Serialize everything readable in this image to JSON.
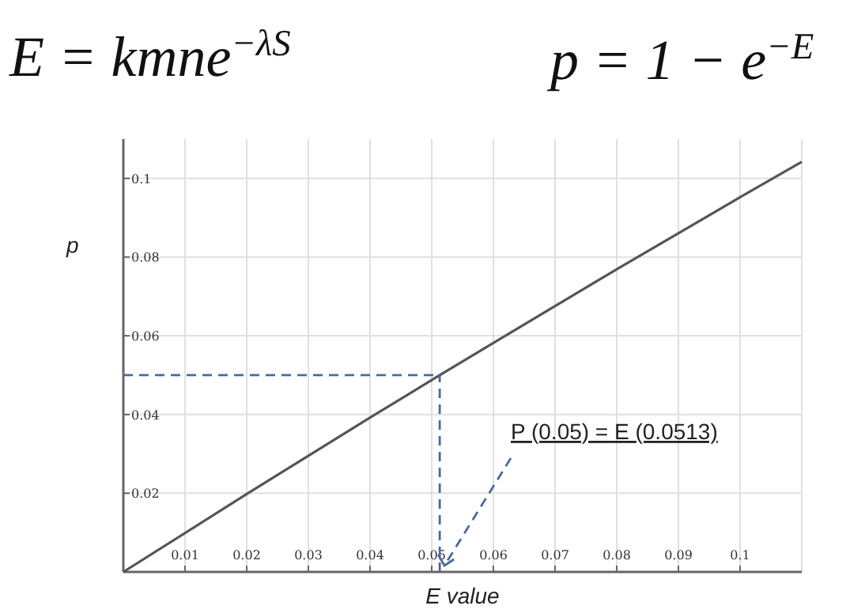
{
  "chart_data": {
    "type": "line",
    "title": "E = kmne$^{−λS}$",
    "subtitle": "p = 1 − e$^{−E}$",
    "xlabel": "E value",
    "ylabel": "p",
    "x": [
      0,
      0.02,
      0.04,
      0.0513,
      0.06,
      0.08,
      0.1,
      0.11
    ],
    "series": [
      {
        "color": "#555555",
        "values": [
          0,
          0.0198,
          0.0392,
          0.05,
          0.0582,
          0.0769,
          0.0952,
          0.1042
        ]
      }
    ],
    "ref_lines": [
      {
        "axis": "y",
        "value": 0.05,
        "color": "#4a6a9a",
        "line_style": "dashed"
      },
      {
        "axis": "x",
        "value": 0.0513,
        "color": "#4a6a9a",
        "line_style": "dashed"
      }
    ],
    "xlim": [
      0,
      0.11
    ],
    "ylim": [
      0,
      0.11
    ],
    "xticks": [
      0.01,
      0.02,
      0.03,
      0.04,
      0.05,
      0.06,
      0.07,
      0.08,
      0.09,
      0.1
    ],
    "yticks": [
      0.02,
      0.04,
      0.06,
      0.08,
      0.1
    ],
    "grid": true,
    "marker": "none",
    "line_style": "solid",
    "annotations": [
      {
        "text": "P (0.05) = E (0.0513)",
        "x": 0.0513,
        "y": 0
      }
    ]
  }
}
